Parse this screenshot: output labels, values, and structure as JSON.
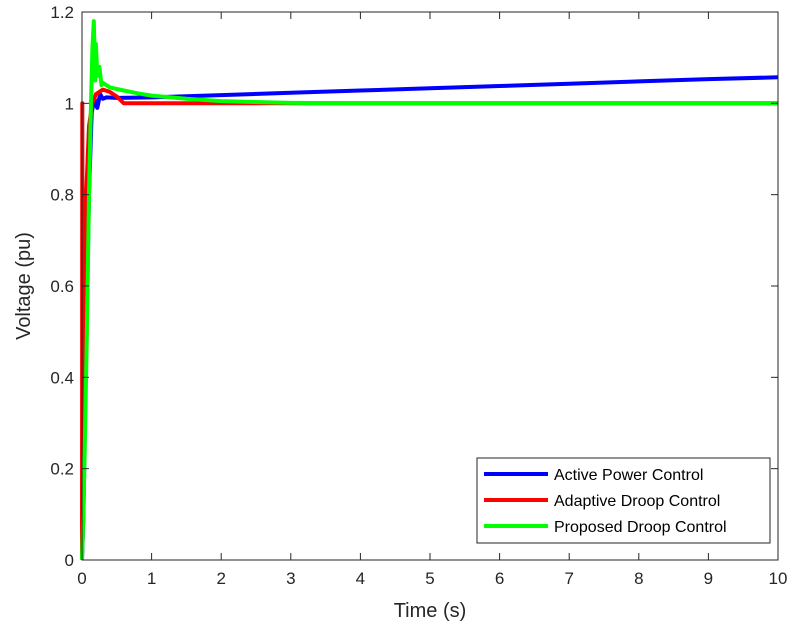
{
  "chart_data": {
    "type": "line",
    "xlabel": "Time (s)",
    "ylabel": "Voltage (pu)",
    "xlim": [
      0,
      10
    ],
    "ylim": [
      0,
      1.2
    ],
    "xticks": [
      "0",
      "1",
      "2",
      "3",
      "4",
      "5",
      "6",
      "7",
      "8",
      "9",
      "10"
    ],
    "yticks": [
      "0",
      "0.2",
      "0.4",
      "0.6",
      "0.8",
      "1",
      "1.2"
    ],
    "grid": false,
    "legend_position": "bottom-right",
    "series": [
      {
        "name": "Active Power Control",
        "color": "#0000ff",
        "points": [
          [
            0,
            0
          ],
          [
            0.02,
            0.1
          ],
          [
            0.05,
            0.4
          ],
          [
            0.1,
            0.8
          ],
          [
            0.14,
            0.98
          ],
          [
            0.18,
            1.01
          ],
          [
            0.22,
            0.99
          ],
          [
            0.26,
            1.02
          ],
          [
            0.3,
            1.01
          ],
          [
            0.35,
            1.013
          ],
          [
            0.5,
            1.012
          ],
          [
            1,
            1.013
          ],
          [
            2,
            1.018
          ],
          [
            3,
            1.023
          ],
          [
            4,
            1.028
          ],
          [
            5,
            1.033
          ],
          [
            6,
            1.038
          ],
          [
            7,
            1.043
          ],
          [
            8,
            1.048
          ],
          [
            9,
            1.053
          ],
          [
            10,
            1.057
          ]
        ]
      },
      {
        "name": "Adaptive Droop Control",
        "color": "#ff0000",
        "points": [
          [
            0,
            0
          ],
          [
            0.005,
            1.0
          ],
          [
            0.01,
            0.3
          ],
          [
            0.02,
            0.15
          ],
          [
            0.04,
            0.5
          ],
          [
            0.06,
            0.8
          ],
          [
            0.1,
            0.95
          ],
          [
            0.15,
            1.0
          ],
          [
            0.2,
            1.02
          ],
          [
            0.3,
            1.03
          ],
          [
            0.4,
            1.025
          ],
          [
            0.5,
            1.015
          ],
          [
            0.6,
            1.0
          ],
          [
            1,
            1.0
          ],
          [
            10,
            1.0
          ]
        ]
      },
      {
        "name": "Proposed Droop Control",
        "color": "#00ff00",
        "points": [
          [
            0,
            0
          ],
          [
            0.02,
            0.1
          ],
          [
            0.04,
            0.25
          ],
          [
            0.07,
            0.5
          ],
          [
            0.1,
            0.8
          ],
          [
            0.13,
            1.0
          ],
          [
            0.15,
            1.12
          ],
          [
            0.17,
            1.18
          ],
          [
            0.19,
            1.05
          ],
          [
            0.2,
            1.13
          ],
          [
            0.22,
            1.06
          ],
          [
            0.25,
            1.08
          ],
          [
            0.28,
            1.04
          ],
          [
            0.3,
            1.045
          ],
          [
            0.4,
            1.035
          ],
          [
            0.6,
            1.028
          ],
          [
            0.8,
            1.022
          ],
          [
            1,
            1.017
          ],
          [
            1.5,
            1.01
          ],
          [
            2,
            1.005
          ],
          [
            3,
            1.001
          ],
          [
            4,
            1.0
          ],
          [
            10,
            1.0
          ]
        ]
      }
    ]
  }
}
